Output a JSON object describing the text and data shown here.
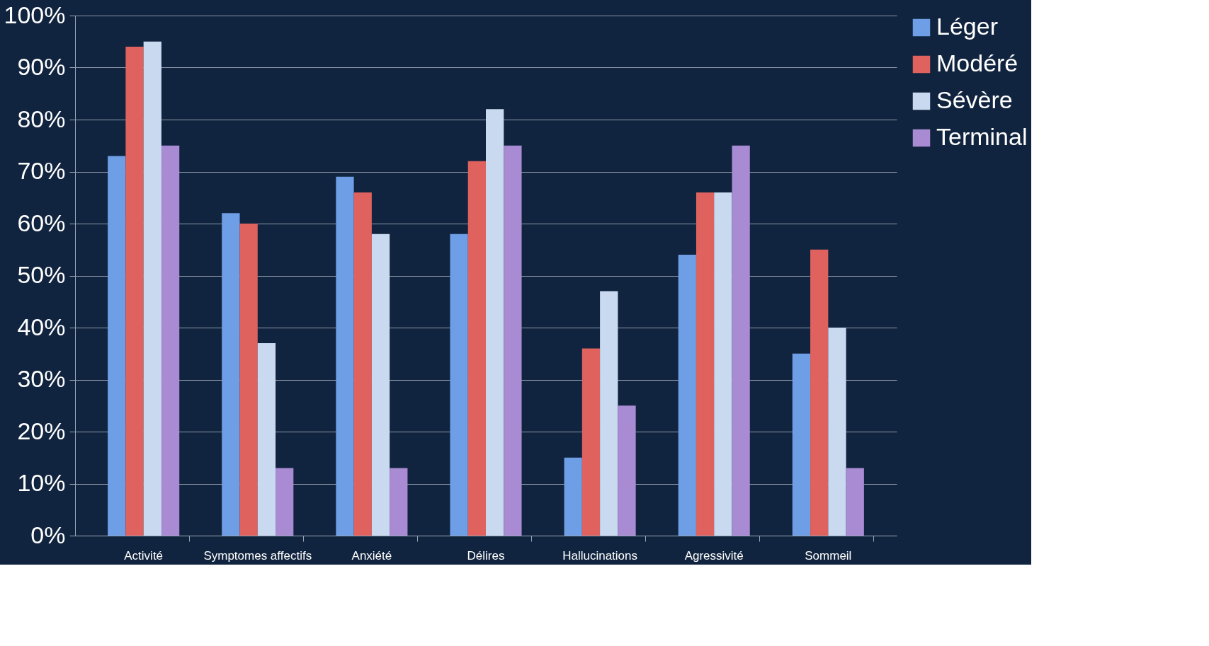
{
  "chart_data": {
    "type": "bar",
    "categories": [
      "Activité",
      "Symptomes affectifs",
      "Anxiété",
      "Délires",
      "Hallucinations",
      "Agressivité",
      "Sommeil"
    ],
    "series": [
      {
        "name": "Léger",
        "color": "#6e9ee6",
        "values": [
          73,
          62,
          69,
          58,
          15,
          54,
          35
        ]
      },
      {
        "name": "Modéré",
        "color": "#e0625e",
        "values": [
          94,
          60,
          66,
          72,
          36,
          66,
          55
        ]
      },
      {
        "name": "Sévère",
        "color": "#c9daf0",
        "values": [
          95,
          37,
          58,
          82,
          47,
          66,
          40
        ]
      },
      {
        "name": "Terminal",
        "color": "#a98bd3",
        "values": [
          75,
          13,
          13,
          75,
          25,
          75,
          13
        ]
      }
    ],
    "ylim": [
      0,
      100
    ],
    "yticks": [
      {
        "value": 0,
        "label": "0%"
      },
      {
        "value": 10,
        "label": "10%"
      },
      {
        "value": 20,
        "label": "20%"
      },
      {
        "value": 30,
        "label": "30%"
      },
      {
        "value": 40,
        "label": "40%"
      },
      {
        "value": 50,
        "label": "50%"
      },
      {
        "value": 60,
        "label": "60%"
      },
      {
        "value": 70,
        "label": "70%"
      },
      {
        "value": 80,
        "label": "80%"
      },
      {
        "value": 90,
        "label": "90%"
      },
      {
        "value": 100,
        "label": "100%"
      }
    ],
    "grid": "y",
    "legend": "right"
  }
}
